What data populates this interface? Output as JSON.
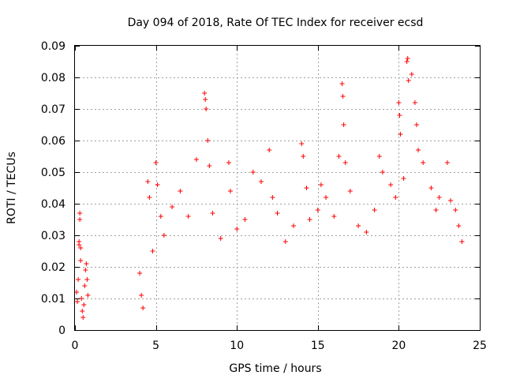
{
  "chart_data": {
    "type": "scatter",
    "title": "Day 094 of 2018, Rate Of TEC Index for receiver ecsd",
    "xlabel": "GPS time / hours",
    "ylabel": "ROTI / TECUs",
    "xlim": [
      0,
      25
    ],
    "ylim": [
      0,
      0.09
    ],
    "x_ticks": [
      0,
      5,
      10,
      15,
      20,
      25
    ],
    "x_tick_labels": [
      "0",
      "5",
      "10",
      "15",
      "20",
      "25"
    ],
    "y_ticks": [
      0,
      0.01,
      0.02,
      0.03,
      0.04,
      0.05,
      0.06,
      0.07,
      0.08,
      0.09
    ],
    "y_tick_labels": [
      "0",
      "0.01",
      "0.02",
      "0.03",
      "0.04",
      "0.05",
      "0.06",
      "0.07",
      "0.08",
      "0.09"
    ],
    "grid": true,
    "marker": "+",
    "color": "#ff0000",
    "series": [
      {
        "values": [
          [
            0.1,
            0.012
          ],
          [
            0.15,
            0.009
          ],
          [
            0.2,
            0.016
          ],
          [
            0.25,
            0.028
          ],
          [
            0.3,
            0.035
          ],
          [
            0.3,
            0.037
          ],
          [
            0.35,
            0.022
          ],
          [
            0.4,
            0.01
          ],
          [
            0.45,
            0.006
          ],
          [
            0.5,
            0.004
          ],
          [
            0.55,
            0.008
          ],
          [
            0.6,
            0.014
          ],
          [
            0.65,
            0.019
          ],
          [
            0.7,
            0.021
          ],
          [
            0.75,
            0.016
          ],
          [
            0.8,
            0.011
          ],
          [
            0.25,
            0.027
          ],
          [
            0.35,
            0.026
          ],
          [
            4.0,
            0.018
          ],
          [
            4.1,
            0.011
          ],
          [
            4.2,
            0.007
          ],
          [
            4.5,
            0.047
          ],
          [
            4.6,
            0.042
          ],
          [
            4.8,
            0.025
          ],
          [
            5.0,
            0.053
          ],
          [
            5.1,
            0.046
          ],
          [
            5.3,
            0.036
          ],
          [
            5.5,
            0.03
          ],
          [
            6.0,
            0.039
          ],
          [
            6.5,
            0.044
          ],
          [
            7.0,
            0.036
          ],
          [
            7.5,
            0.054
          ],
          [
            8.0,
            0.075
          ],
          [
            8.05,
            0.073
          ],
          [
            8.1,
            0.07
          ],
          [
            8.2,
            0.06
          ],
          [
            8.3,
            0.052
          ],
          [
            8.5,
            0.037
          ],
          [
            9.0,
            0.029
          ],
          [
            9.5,
            0.053
          ],
          [
            9.6,
            0.044
          ],
          [
            10.0,
            0.032
          ],
          [
            10.5,
            0.035
          ],
          [
            11.0,
            0.05
          ],
          [
            11.5,
            0.047
          ],
          [
            12.0,
            0.057
          ],
          [
            12.2,
            0.042
          ],
          [
            12.5,
            0.037
          ],
          [
            13.0,
            0.028
          ],
          [
            13.5,
            0.033
          ],
          [
            14.0,
            0.059
          ],
          [
            14.1,
            0.055
          ],
          [
            14.3,
            0.045
          ],
          [
            14.5,
            0.035
          ],
          [
            15.0,
            0.038
          ],
          [
            15.2,
            0.046
          ],
          [
            15.5,
            0.042
          ],
          [
            16.0,
            0.036
          ],
          [
            16.3,
            0.055
          ],
          [
            16.5,
            0.078
          ],
          [
            16.55,
            0.074
          ],
          [
            16.6,
            0.065
          ],
          [
            16.7,
            0.053
          ],
          [
            17.0,
            0.044
          ],
          [
            17.5,
            0.033
          ],
          [
            18.0,
            0.031
          ],
          [
            18.5,
            0.038
          ],
          [
            18.8,
            0.055
          ],
          [
            19.0,
            0.05
          ],
          [
            19.5,
            0.046
          ],
          [
            19.8,
            0.042
          ],
          [
            20.0,
            0.072
          ],
          [
            20.05,
            0.068
          ],
          [
            20.1,
            0.062
          ],
          [
            20.3,
            0.048
          ],
          [
            20.5,
            0.085
          ],
          [
            20.55,
            0.086
          ],
          [
            20.6,
            0.079
          ],
          [
            20.8,
            0.081
          ],
          [
            21.0,
            0.072
          ],
          [
            21.1,
            0.065
          ],
          [
            21.2,
            0.057
          ],
          [
            21.5,
            0.053
          ],
          [
            22.0,
            0.045
          ],
          [
            22.3,
            0.038
          ],
          [
            22.5,
            0.042
          ],
          [
            23.0,
            0.053
          ],
          [
            23.2,
            0.041
          ],
          [
            23.5,
            0.038
          ],
          [
            23.7,
            0.033
          ],
          [
            23.9,
            0.028
          ]
        ]
      }
    ]
  }
}
